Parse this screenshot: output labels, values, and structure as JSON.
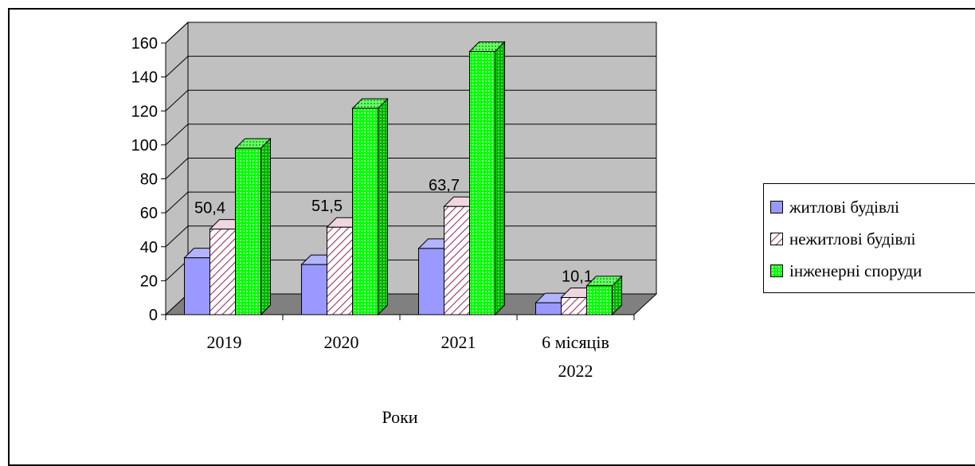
{
  "chart_data": {
    "type": "bar",
    "categories": [
      [
        "2019"
      ],
      [
        "2020"
      ],
      [
        "2021"
      ],
      [
        "6 місяців",
        "2022"
      ]
    ],
    "series": [
      {
        "name": "житлові будівлі",
        "values": [
          33.5,
          29.5,
          39,
          7
        ],
        "color": "#9999ff",
        "pattern": "solid"
      },
      {
        "name": "нежитлові будівлі",
        "values": [
          50.4,
          51.5,
          63.7,
          10.1
        ],
        "color": "#993366",
        "pattern": "diagonal-hatch"
      },
      {
        "name": "інженерні споруди",
        "values": [
          98,
          121.5,
          155,
          17
        ],
        "color": "#00ff00",
        "pattern": "dotted"
      }
    ],
    "data_labels": [
      {
        "category": 0,
        "text": "50,4"
      },
      {
        "category": 1,
        "text": "51,5"
      },
      {
        "category": 2,
        "text": "63,7"
      },
      {
        "category": 3,
        "text": "10,1"
      }
    ],
    "xlabel": "Роки",
    "ylabel": "",
    "ylim": [
      0,
      160
    ],
    "yticks": [
      0,
      20,
      40,
      60,
      80,
      100,
      120,
      140,
      160
    ],
    "grid": true,
    "legend_position": "right",
    "style": "3d-clustered-column",
    "wall_color": "#c0c0c0",
    "floor_color": "#808080"
  }
}
